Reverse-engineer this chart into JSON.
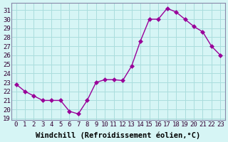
{
  "x": [
    0,
    1,
    2,
    3,
    4,
    5,
    6,
    7,
    8,
    9,
    10,
    11,
    12,
    13,
    14,
    15,
    16,
    17,
    18,
    19,
    20,
    21,
    22,
    23
  ],
  "y": [
    22.8,
    22.0,
    21.5,
    21.0,
    21.0,
    21.0,
    19.8,
    19.5,
    21.0,
    23.0,
    23.3,
    23.3,
    23.2,
    24.8,
    27.6,
    30.0,
    30.0,
    31.2,
    30.8,
    30.0,
    29.2,
    28.6,
    27.0,
    26.0
  ],
  "line_color": "#990099",
  "marker": "D",
  "marker_size": 3,
  "xlabel": "Windchill (Refroidissement éolien,°C)",
  "ylabel_ticks": [
    19,
    20,
    21,
    22,
    23,
    24,
    25,
    26,
    27,
    28,
    29,
    30,
    31
  ],
  "ylim": [
    18.8,
    31.8
  ],
  "xlim": [
    -0.5,
    23.5
  ],
  "bg_color": "#d6f5f5",
  "grid_color": "#aadddd",
  "xlabel_fontsize": 7.5,
  "tick_fontsize": 6.5
}
